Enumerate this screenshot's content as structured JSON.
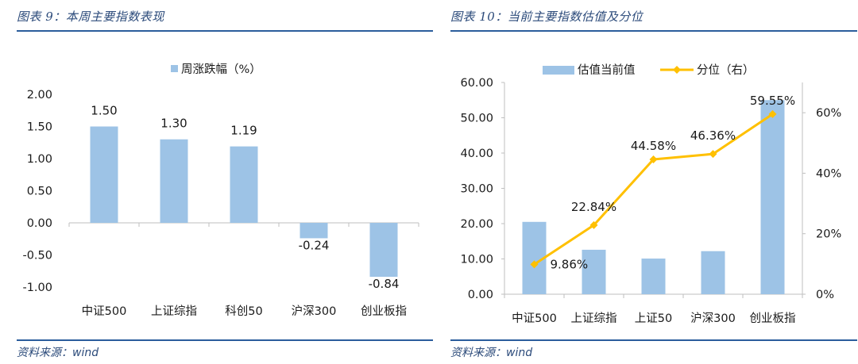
{
  "left_panel": {
    "title": "图表 9：本周主要指数表现",
    "source_label": "资料来源：",
    "source_value": "wind"
  },
  "right_panel": {
    "title": "图表 10：当前主要指数估值及分位",
    "source_label": "资料来源：",
    "source_value": "wind"
  },
  "colors": {
    "bar": "#9dc3e6",
    "line": "#ffc000",
    "rule": "#2b5d9c",
    "title": "#2b4a7a"
  },
  "chart_data": [
    {
      "type": "bar",
      "categories": [
        "中证500",
        "上证综指",
        "科创50",
        "沪深300",
        "创业板指"
      ],
      "series": [
        {
          "name": "周涨跌幅（%）",
          "values": [
            1.5,
            1.3,
            1.19,
            -0.24,
            -0.84
          ],
          "data_labels": [
            "1.50",
            "1.30",
            "1.19",
            "-0.24",
            "-0.84"
          ]
        }
      ],
      "ylim": [
        -1.0,
        2.0
      ],
      "yticks": [
        2.0,
        1.5,
        1.0,
        0.5,
        0.0,
        -0.5,
        -1.0
      ],
      "ytick_labels": [
        "2.00",
        "1.50",
        "1.00",
        "0.50",
        "0.00",
        "-0.50",
        "-1.00"
      ],
      "legend_position": "top-center",
      "grid": false
    },
    {
      "type": "bar",
      "categories": [
        "中证500",
        "上证综指",
        "上证50",
        "沪深300",
        "创业板指"
      ],
      "series": [
        {
          "name": "估值当前值",
          "type": "bar",
          "axis": "left",
          "values": [
            20.5,
            12.6,
            10.1,
            12.2,
            55.0
          ]
        },
        {
          "name": "分位（右）",
          "type": "line",
          "axis": "right",
          "values": [
            9.86,
            22.84,
            44.58,
            46.36,
            59.55
          ],
          "data_labels": [
            "9.86%",
            "22.84%",
            "44.58%",
            "46.36%",
            "59.55%"
          ]
        }
      ],
      "ylim": [
        0,
        60
      ],
      "yticks": [
        60,
        50,
        40,
        30,
        20,
        10,
        0
      ],
      "ytick_labels": [
        "60.00",
        "50.00",
        "40.00",
        "30.00",
        "20.00",
        "10.00",
        "0.00"
      ],
      "y2lim": [
        0,
        70
      ],
      "y2ticks": [
        60,
        40,
        20,
        0
      ],
      "y2tick_labels": [
        "60%",
        "40%",
        "20%",
        "0%"
      ],
      "legend_position": "top-center",
      "grid": false
    }
  ]
}
